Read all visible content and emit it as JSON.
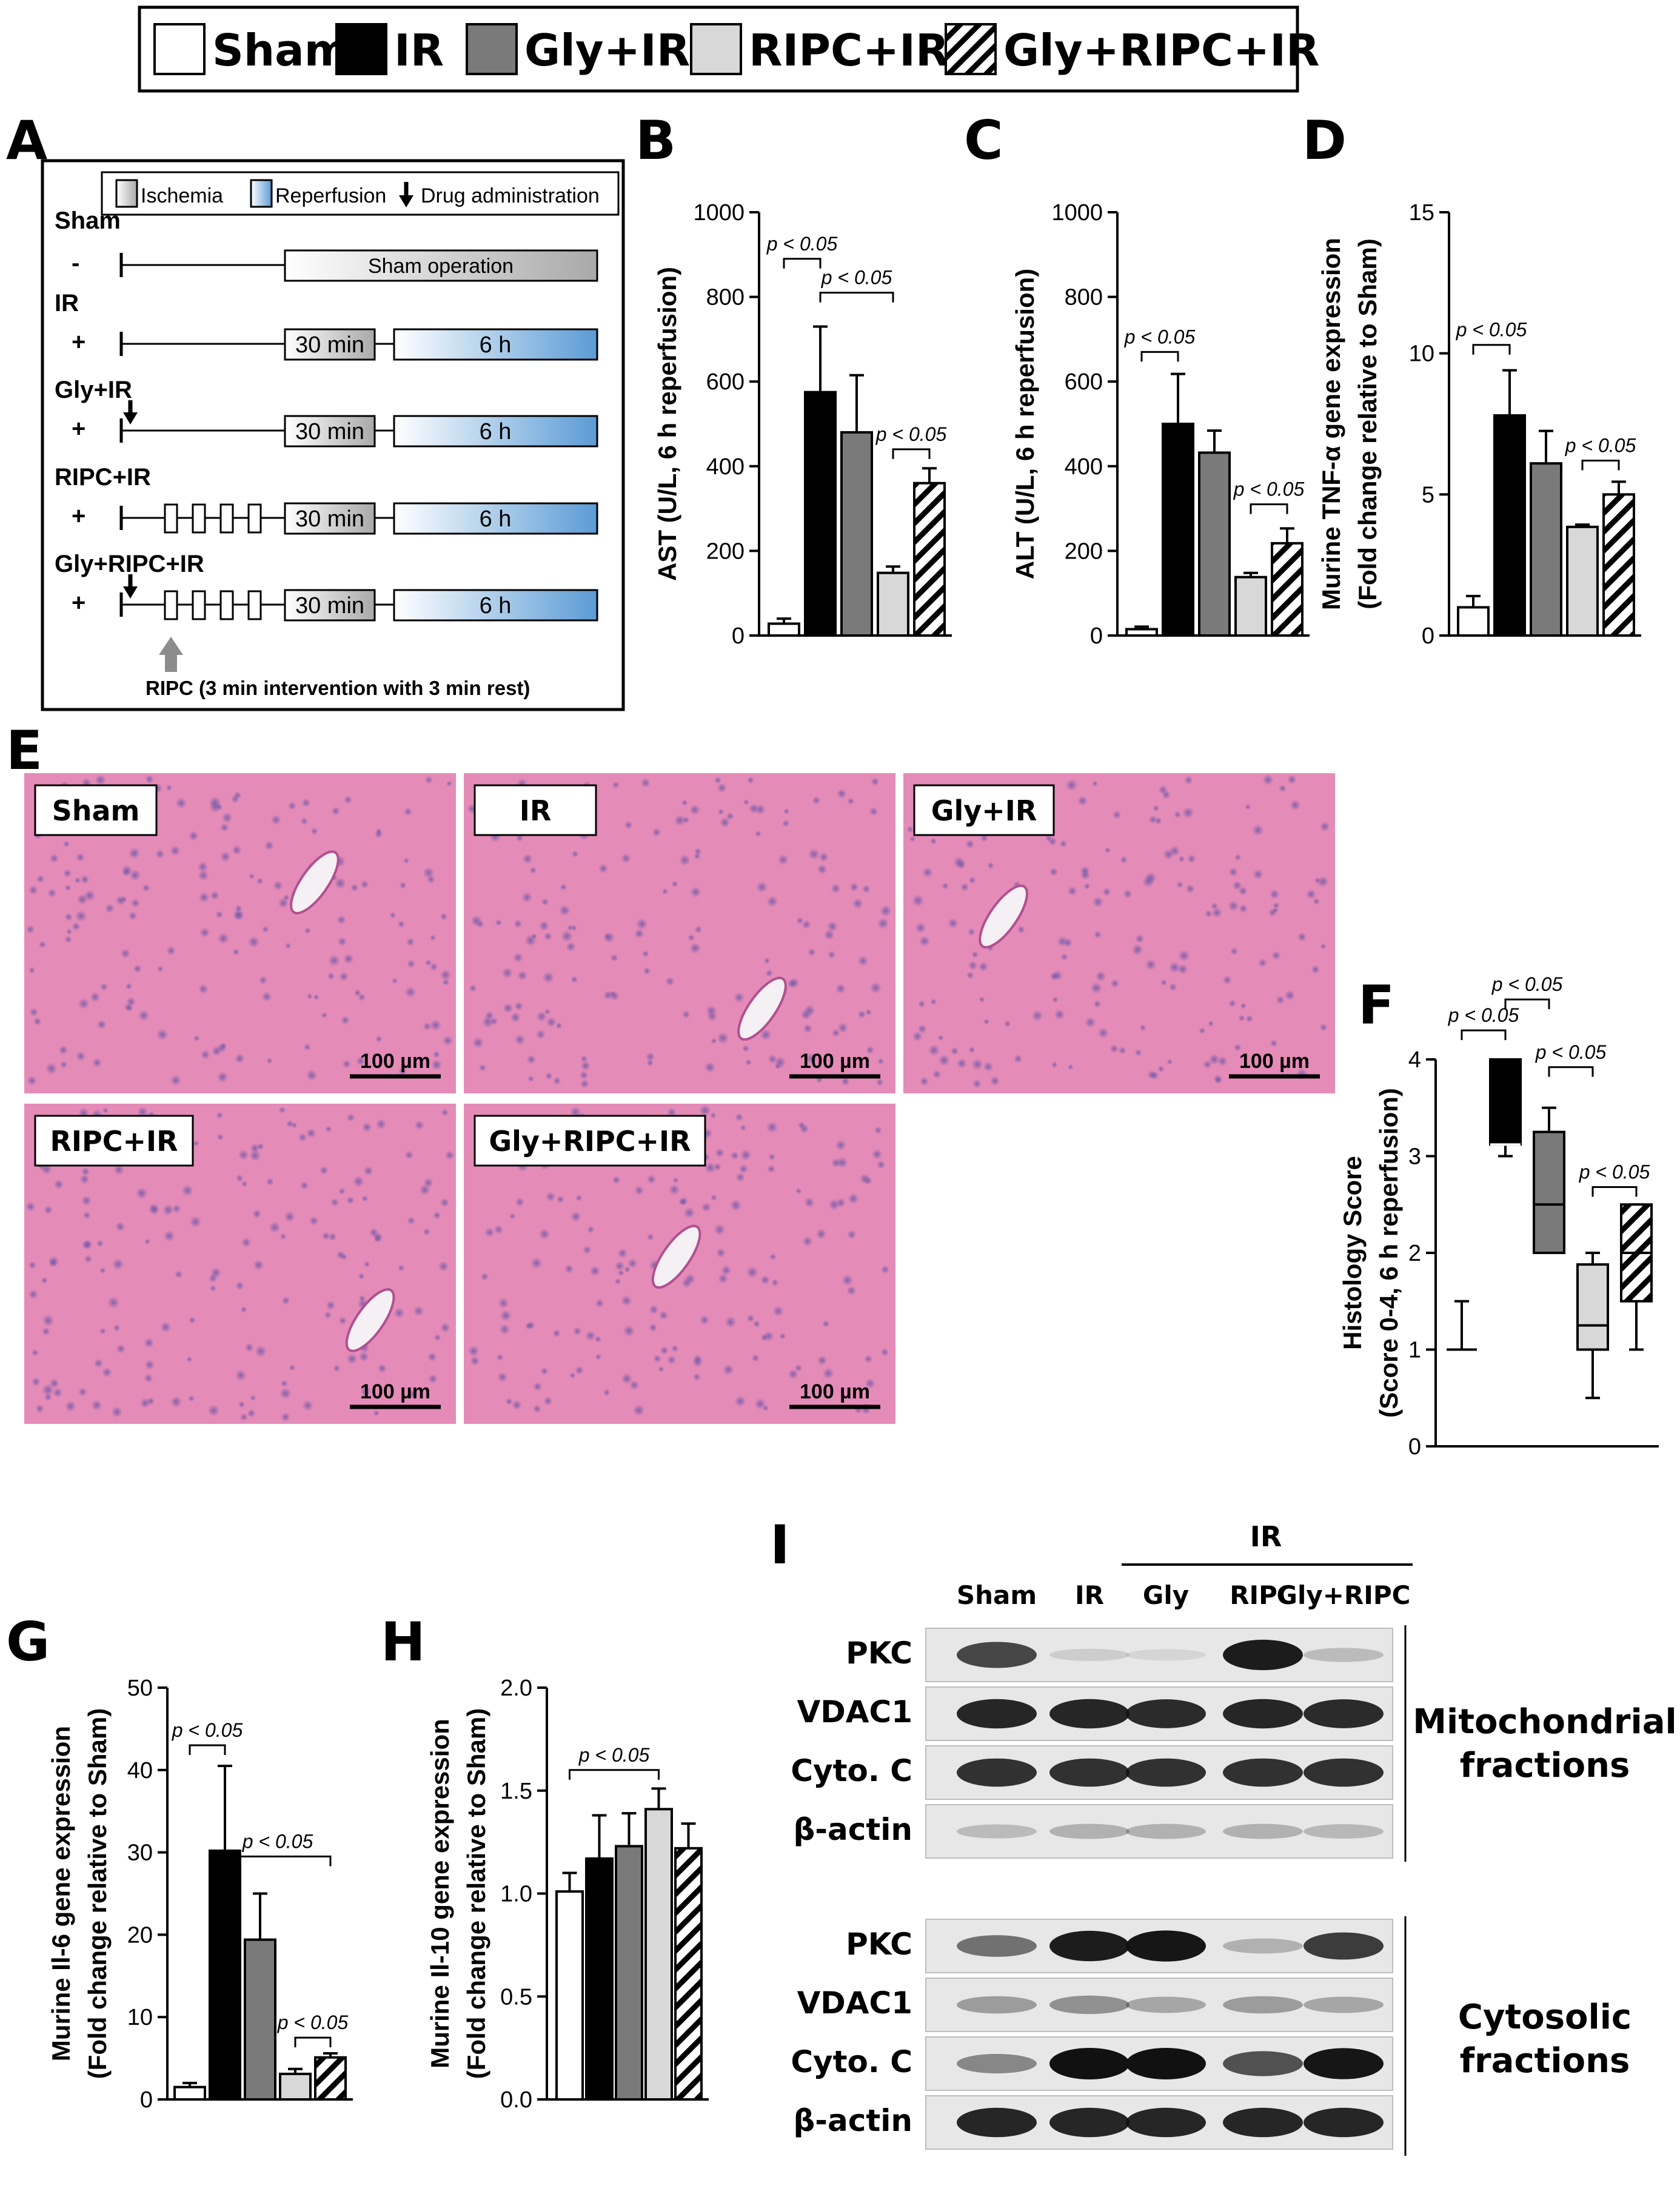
{
  "legend": [
    {
      "label": "Sham",
      "style": "white"
    },
    {
      "label": "IR",
      "style": "black"
    },
    {
      "label": "Gly+IR",
      "style": "dgray"
    },
    {
      "label": "RIPC+IR",
      "style": "lgray"
    },
    {
      "label": "Gly+RIPC+IR",
      "style": "hatch"
    }
  ],
  "colors": {
    "white": "#ffffff",
    "black": "#000000",
    "dgray": "#7a7a7a",
    "lgray": "#d8d8d8",
    "ischemia": "#bdbdbd",
    "reperfusion": "#6fa8dc",
    "he_tissue": "#e58bb8"
  },
  "panel_labels": {
    "A": "A",
    "B": "B",
    "C": "C",
    "D": "D",
    "E": "E",
    "F": "F",
    "G": "G",
    "H": "H",
    "I": "I"
  },
  "protocol": {
    "legend_items": {
      "ischemia": "Ischemia",
      "reperfusion": "Reperfusion",
      "drug": "Drug administration"
    },
    "rows": [
      {
        "name": "Sham",
        "sign": "-",
        "drug": false,
        "ripc": false,
        "sham_op": "Sham operation"
      },
      {
        "name": "IR",
        "sign": "+",
        "drug": false,
        "ripc": false,
        "ischemia": "30 min",
        "reperfusion": "6 h"
      },
      {
        "name": "Gly+IR",
        "sign": "+",
        "drug": true,
        "ripc": false,
        "ischemia": "30 min",
        "reperfusion": "6 h"
      },
      {
        "name": "RIPC+IR",
        "sign": "+",
        "drug": false,
        "ripc": true,
        "ischemia": "30 min",
        "reperfusion": "6 h"
      },
      {
        "name": "Gly+RIPC+IR",
        "sign": "+",
        "drug": true,
        "ripc": true,
        "ischemia": "30 min",
        "reperfusion": "6 h"
      }
    ],
    "ripc_note": "RIPC (3 min intervention with 3 min rest)"
  },
  "histology": {
    "panels": [
      {
        "label": "Sham",
        "scale": "100 µm"
      },
      {
        "label": "IR",
        "scale": "100 µm"
      },
      {
        "label": "Gly+IR",
        "scale": "100 µm"
      },
      {
        "label": "RIPC+IR",
        "scale": "100 µm"
      },
      {
        "label": "Gly+RIPC+IR",
        "scale": "100 µm"
      }
    ]
  },
  "chart_data": [
    {
      "panel": "B",
      "type": "bar",
      "categories": [
        "Sham",
        "IR",
        "Gly+IR",
        "RIPC+IR",
        "Gly+RIPC+IR"
      ],
      "values": [
        28,
        575,
        480,
        148,
        360
      ],
      "errors": [
        12,
        155,
        135,
        15,
        35
      ],
      "ylabel": "AST (U/L, 6 h reperfusion)",
      "ylim": [
        0,
        1000
      ],
      "yticks": [
        "0",
        "200",
        "400",
        "600",
        "800",
        "1000"
      ],
      "brackets": [
        {
          "from": 0,
          "to": 1,
          "y": 890,
          "label": "p < 0.05"
        },
        {
          "from": 1,
          "to": 3,
          "y": 810,
          "label": "p < 0.05"
        },
        {
          "from": 3,
          "to": 4,
          "y": 440,
          "label": "p < 0.05"
        }
      ]
    },
    {
      "panel": "C",
      "type": "bar",
      "categories": [
        "Sham",
        "IR",
        "Gly+IR",
        "RIPC+IR",
        "Gly+RIPC+IR"
      ],
      "values": [
        15,
        500,
        432,
        138,
        218
      ],
      "errors": [
        6,
        118,
        52,
        10,
        35
      ],
      "ylabel": "ALT (U/L, 6 h reperfusion)",
      "ylim": [
        0,
        1000
      ],
      "yticks": [
        "0",
        "200",
        "400",
        "600",
        "800",
        "1000"
      ],
      "brackets": [
        {
          "from": 0,
          "to": 1,
          "y": 670,
          "label": "p < 0.05"
        },
        {
          "from": 3,
          "to": 4,
          "y": 310,
          "label": "p < 0.05"
        }
      ]
    },
    {
      "panel": "D",
      "type": "bar",
      "categories": [
        "Sham",
        "IR",
        "Gly+IR",
        "RIPC+IR",
        "Gly+RIPC+IR"
      ],
      "values": [
        1.0,
        7.8,
        6.1,
        3.85,
        5.0
      ],
      "errors": [
        0.4,
        1.6,
        1.15,
        0.08,
        0.45
      ],
      "ylabel": "Murine TNF-α gene expression",
      "ylabel2": "(Fold change relative to Sham)",
      "ylim": [
        0,
        15
      ],
      "yticks": [
        "0",
        "5",
        "10",
        "15"
      ],
      "brackets": [
        {
          "from": 0,
          "to": 1,
          "y": 10.3,
          "label": "p < 0.05"
        },
        {
          "from": 3,
          "to": 4,
          "y": 6.2,
          "label": "p < 0.05"
        }
      ]
    },
    {
      "panel": "F",
      "type": "box",
      "categories": [
        "Sham",
        "IR",
        "Gly+IR",
        "RIPC+IR",
        "Gly+RIPC+IR"
      ],
      "boxes": [
        {
          "min": 1,
          "q1": 1,
          "median": 1,
          "q3": 1,
          "max": 1.5
        },
        {
          "min": 3,
          "q1": 3.12,
          "median": 3.12,
          "q3": 4,
          "max": 4
        },
        {
          "min": 2,
          "q1": 2,
          "median": 2.5,
          "q3": 3.25,
          "max": 3.5
        },
        {
          "min": 0.5,
          "q1": 1,
          "median": 1.25,
          "q3": 1.88,
          "max": 2
        },
        {
          "min": 1,
          "q1": 1.5,
          "median": 2,
          "q3": 2.5,
          "max": 2.5
        }
      ],
      "ylabel": "Histology Score",
      "ylabel2": "(Score 0-4, 6 h reperfusion)",
      "ylim": [
        0,
        4
      ],
      "yticks": [
        "0",
        "1",
        "2",
        "3",
        "4"
      ],
      "brackets": [
        {
          "from": 0,
          "to": 1,
          "y": 4.3,
          "label": "p < 0.05"
        },
        {
          "from": 1,
          "to": 2,
          "y": 4.62,
          "label": "p < 0.05"
        },
        {
          "from": 2,
          "to": 3,
          "y": 3.92,
          "label": "p < 0.05"
        },
        {
          "from": 3,
          "to": 4,
          "y": 2.68,
          "label": "p < 0.05"
        }
      ]
    },
    {
      "panel": "G",
      "type": "bar",
      "categories": [
        "Sham",
        "IR",
        "Gly+IR",
        "RIPC+IR",
        "Gly+RIPC+IR"
      ],
      "values": [
        1.5,
        30.2,
        19.4,
        3.1,
        5.1
      ],
      "errors": [
        0.5,
        10.3,
        5.6,
        0.6,
        0.5
      ],
      "ylabel": "Murine Il-6 gene expression",
      "ylabel2": "(Fold change relative to Sham)",
      "ylim": [
        0,
        50
      ],
      "yticks": [
        "0",
        "10",
        "20",
        "30",
        "40",
        "50"
      ],
      "brackets": [
        {
          "from": 0,
          "to": 1,
          "y": 43,
          "label": "p < 0.05"
        },
        {
          "from": 1,
          "to": 4,
          "y": 29.5,
          "label": "p < 0.05"
        },
        {
          "from": 3,
          "to": 4,
          "y": 7.5,
          "label": "p < 0.05"
        }
      ]
    },
    {
      "panel": "H",
      "type": "bar",
      "categories": [
        "Sham",
        "IR",
        "Gly+IR",
        "RIPC+IR",
        "Gly+RIPC+IR"
      ],
      "values": [
        1.01,
        1.17,
        1.23,
        1.41,
        1.22
      ],
      "errors": [
        0.09,
        0.21,
        0.16,
        0.1,
        0.12
      ],
      "ylabel": "Murine Il-10 gene expression",
      "ylabel2": "(Fold change relative to Sham)",
      "ylim": [
        0,
        2.0
      ],
      "yticks": [
        "0.0",
        "0.5",
        "1.0",
        "1.5",
        "2.0"
      ],
      "brackets": [
        {
          "from": 0,
          "to": 3,
          "y": 1.6,
          "label": "p < 0.05"
        }
      ]
    }
  ],
  "blot": {
    "group_label": "IR",
    "lanes": [
      "Sham",
      "IR",
      "Gly",
      "RIPC",
      "Gly+RIPC"
    ],
    "mito_label": [
      "Mitochondrial",
      "fractions"
    ],
    "cyto_label": [
      "Cytosolic",
      "fractions"
    ],
    "mito": [
      {
        "name": "PKC",
        "intensity": [
          0.75,
          0.12,
          0.08,
          0.95,
          0.2
        ]
      },
      {
        "name": "VDAC1",
        "intensity": [
          0.9,
          0.9,
          0.88,
          0.9,
          0.88
        ]
      },
      {
        "name": "Cyto. C",
        "intensity": [
          0.85,
          0.85,
          0.85,
          0.85,
          0.85
        ]
      },
      {
        "name": "β-actin",
        "intensity": [
          0.2,
          0.25,
          0.25,
          0.25,
          0.22
        ]
      }
    ],
    "cyto": [
      {
        "name": "PKC",
        "intensity": [
          0.55,
          0.95,
          0.98,
          0.25,
          0.8
        ]
      },
      {
        "name": "VDAC1",
        "intensity": [
          0.35,
          0.4,
          0.3,
          0.35,
          0.3
        ]
      },
      {
        "name": "Cyto. C",
        "intensity": [
          0.45,
          1.0,
          1.0,
          0.7,
          0.98
        ]
      },
      {
        "name": "β-actin",
        "intensity": [
          0.9,
          0.9,
          0.9,
          0.9,
          0.9
        ]
      }
    ]
  }
}
